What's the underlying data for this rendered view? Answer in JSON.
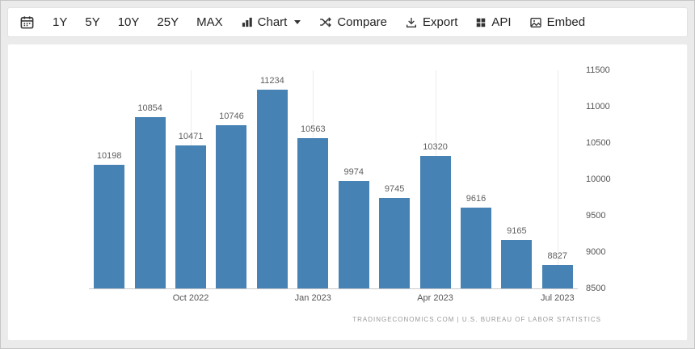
{
  "toolbar": {
    "ranges": [
      "1Y",
      "5Y",
      "10Y",
      "25Y",
      "MAX"
    ],
    "chart": {
      "label": "Chart",
      "icon": "bar-chart-icon"
    },
    "compare": {
      "label": "Compare",
      "icon": "compare-shuffle-icon"
    },
    "export": {
      "label": "Export",
      "icon": "download-icon"
    },
    "api": {
      "label": "API",
      "icon": "grid-icon"
    },
    "embed": {
      "label": "Embed",
      "icon": "image-icon"
    },
    "calendar_icon": "calendar-icon"
  },
  "chart_data": {
    "type": "bar",
    "values": [
      10198,
      10854,
      10471,
      10746,
      11234,
      10563,
      9974,
      9745,
      10320,
      9616,
      9165,
      8827
    ],
    "x_ticks": [
      {
        "bar_index": 2,
        "label": "Oct 2022"
      },
      {
        "bar_index": 5,
        "label": "Jan 2023"
      },
      {
        "bar_index": 8,
        "label": "Apr 2023"
      },
      {
        "bar_index": 11,
        "label": "Jul 2023"
      }
    ],
    "y_ticks": [
      8500,
      9000,
      9500,
      10000,
      10500,
      11000,
      11500
    ],
    "ylim": [
      8500,
      11500
    ],
    "bar_color": "#4682b4",
    "value_label_color": "#606060",
    "grid": "vertical-at-x-ticks",
    "legend": "none",
    "attribution": "TRADINGECONOMICS.COM  |  U.S. BUREAU OF LABOR STATISTICS"
  }
}
